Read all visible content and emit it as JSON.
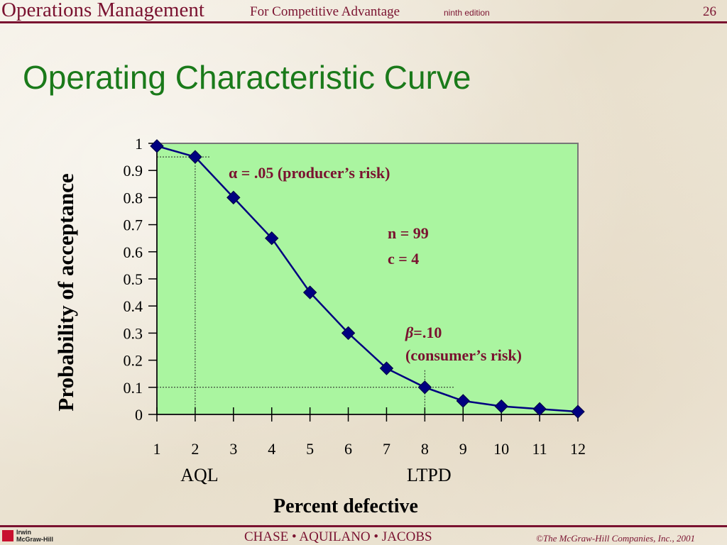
{
  "header": {
    "title": "Operations Management",
    "subtitle": "For Competitive Advantage",
    "edition": "ninth edition",
    "page_number": "26"
  },
  "slide": {
    "title": "Operating Characteristic Curve"
  },
  "colors": {
    "accent": "#7a1230",
    "title": "#1a7a1a",
    "plot_bg": "#aaf5a0",
    "series": "#000080",
    "annotation": "#7a1230"
  },
  "chart_data": {
    "type": "line",
    "xlabel": "Percent defective",
    "ylabel": "Probability of acceptance",
    "x": [
      1,
      2,
      3,
      4,
      5,
      6,
      7,
      8,
      9,
      10,
      11,
      12
    ],
    "series": [
      {
        "values": [
          0.99,
          0.95,
          0.8,
          0.65,
          0.45,
          0.3,
          0.17,
          0.1,
          0.05,
          0.03,
          0.02,
          0.01
        ]
      }
    ],
    "xlim": [
      1,
      12
    ],
    "ylim": [
      0,
      1
    ],
    "x_ticks": [
      "1",
      "2",
      "3",
      "4",
      "5",
      "6",
      "7",
      "8",
      "9",
      "10",
      "11",
      "12"
    ],
    "y_ticks": [
      "0",
      "0.1",
      "0.2",
      "0.3",
      "0.4",
      "0.5",
      "0.6",
      "0.7",
      "0.8",
      "0.9",
      "1"
    ],
    "x_markers": [
      {
        "x": 2,
        "label": "AQL"
      },
      {
        "x": 8,
        "label": "LTPD"
      }
    ],
    "reference_lines": [
      {
        "x": 2,
        "y": 0.95
      },
      {
        "x": 8,
        "y": 0.1
      }
    ],
    "annotations": {
      "alpha": {
        "symbol": "α",
        "text": " = .05 (producer’s risk)"
      },
      "params": [
        "n = 99",
        "c = 4"
      ],
      "beta": {
        "symbol": "β",
        "text": "=.10",
        "line2": "(consumer’s risk)"
      }
    },
    "grid": false,
    "legend": "none"
  },
  "footer": {
    "publisher_logo_line1": "Irwin",
    "publisher_logo_line2": "McGraw-Hill",
    "authors": "CHASE   •   AQUILANO   • JACOBS",
    "copyright": "©The McGraw-Hill Companies, Inc., 2001"
  }
}
